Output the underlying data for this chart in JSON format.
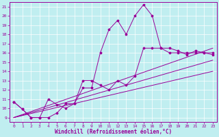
{
  "xlabel": "Windchill (Refroidissement éolien,°C)",
  "bg_color": "#c0eef0",
  "line_color": "#990099",
  "xlim": [
    -0.5,
    23.5
  ],
  "ylim": [
    8.5,
    21.5
  ],
  "xticks": [
    0,
    1,
    2,
    3,
    4,
    5,
    6,
    7,
    8,
    9,
    10,
    11,
    12,
    13,
    14,
    15,
    16,
    17,
    18,
    19,
    20,
    21,
    22,
    23
  ],
  "yticks": [
    9,
    10,
    11,
    12,
    13,
    14,
    15,
    16,
    17,
    18,
    19,
    20,
    21
  ],
  "line1_x": [
    0,
    1,
    2,
    3,
    4,
    5,
    6,
    7,
    8,
    9,
    10,
    11,
    12,
    13,
    14,
    15,
    16,
    17,
    18,
    19,
    20,
    21,
    22,
    23
  ],
  "line1_y": [
    10.7,
    9.9,
    9.0,
    9.0,
    11.0,
    10.4,
    10.0,
    10.5,
    12.2,
    12.2,
    16.0,
    18.5,
    19.5,
    18.0,
    20.0,
    21.2,
    20.0,
    16.5,
    16.5,
    16.2,
    15.8,
    16.2,
    16.0,
    15.8
  ],
  "line2_x": [
    0,
    1,
    2,
    3,
    4,
    5,
    6,
    7,
    8,
    9,
    10,
    11,
    12,
    13,
    14,
    15,
    16,
    17,
    18,
    19,
    20,
    21,
    22,
    23
  ],
  "line2_y": [
    10.7,
    9.9,
    9.0,
    9.0,
    9.0,
    9.5,
    10.5,
    10.5,
    13.0,
    13.0,
    12.5,
    12.0,
    13.0,
    12.5,
    13.5,
    16.5,
    16.5,
    16.5,
    16.0,
    16.0,
    16.0,
    16.0,
    16.0,
    16.0
  ],
  "line3_x": [
    0,
    23
  ],
  "line3_y": [
    9.0,
    16.5
  ],
  "line4_x": [
    0,
    23
  ],
  "line4_y": [
    9.0,
    15.2
  ],
  "line5_x": [
    0,
    23
  ],
  "line5_y": [
    9.0,
    14.0
  ]
}
